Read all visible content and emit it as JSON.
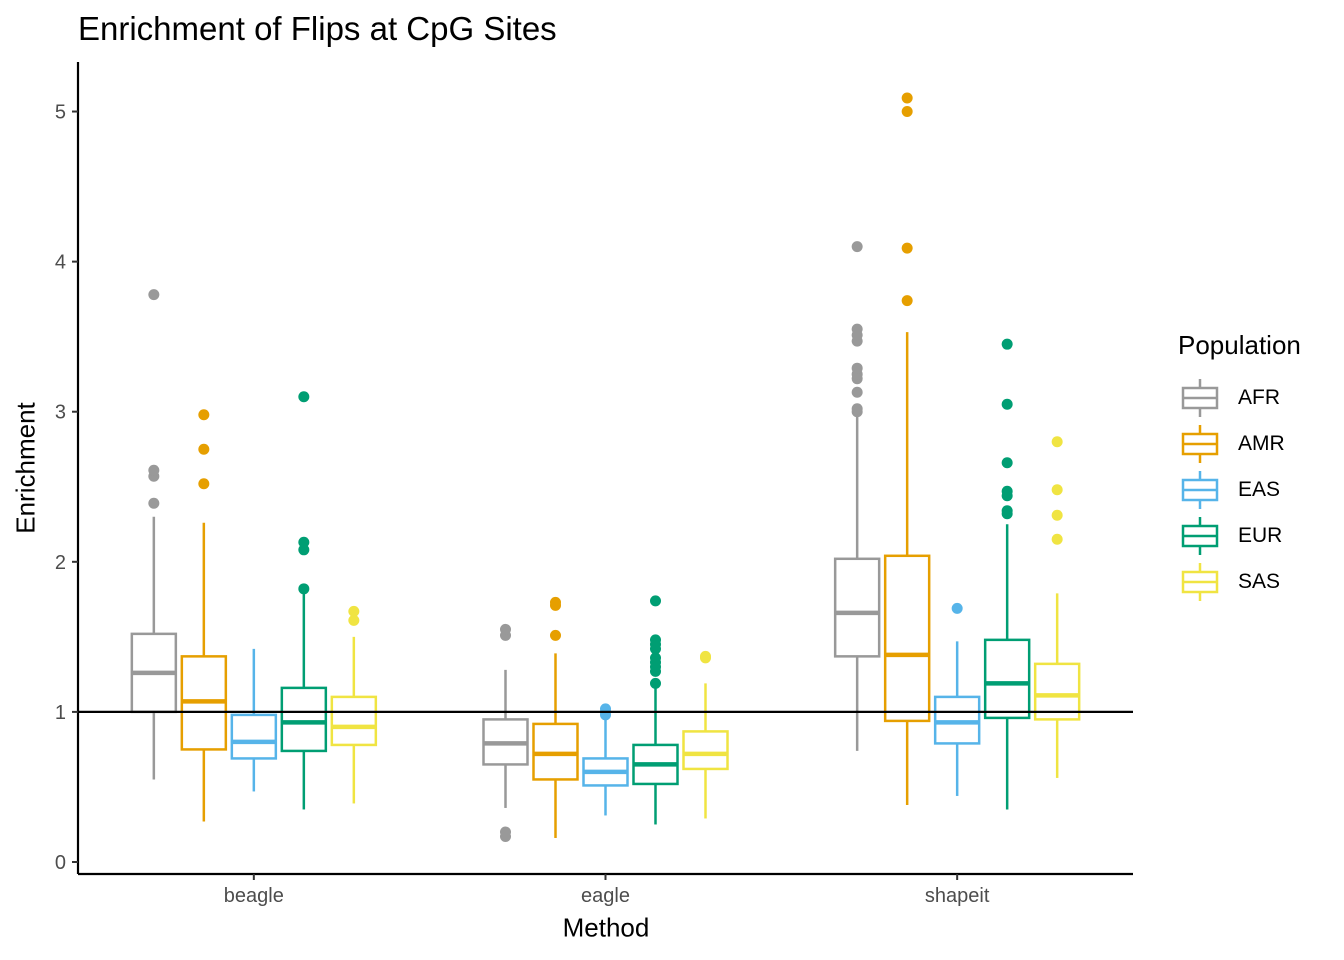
{
  "chart_data": {
    "type": "box",
    "title": "Enrichment of Flips at CpG Sites",
    "xlabel": "Method",
    "ylabel": "Enrichment",
    "categories": [
      "beagle",
      "eagle",
      "shapeit"
    ],
    "ylim": [
      -0.08,
      5.33
    ],
    "yticks": [
      0,
      1,
      2,
      3,
      4,
      5
    ],
    "reference_line": 1,
    "grid": false,
    "legend": {
      "title": "Population",
      "position": "right"
    },
    "series": [
      {
        "name": "AFR",
        "color": "#999999",
        "boxes": [
          {
            "min": 0.55,
            "q1": 1.0,
            "median": 1.26,
            "q3": 1.52,
            "max": 2.3,
            "outliers": [
              2.39,
              2.57,
              2.61,
              3.78
            ]
          },
          {
            "min": 0.36,
            "q1": 0.65,
            "median": 0.79,
            "q3": 0.95,
            "max": 1.28,
            "outliers": [
              0.17,
              0.2,
              1.51,
              1.55
            ]
          },
          {
            "min": 0.74,
            "q1": 1.37,
            "median": 1.66,
            "q3": 2.02,
            "max": 2.98,
            "outliers": [
              3.0,
              3.02,
              3.13,
              3.22,
              3.25,
              3.29,
              3.47,
              3.51,
              3.55,
              4.1
            ]
          }
        ]
      },
      {
        "name": "AMR",
        "color": "#E69F00",
        "boxes": [
          {
            "min": 0.27,
            "q1": 0.75,
            "median": 1.07,
            "q3": 1.37,
            "max": 2.26,
            "outliers": [
              2.52,
              2.75,
              2.98
            ]
          },
          {
            "min": 0.16,
            "q1": 0.55,
            "median": 0.72,
            "q3": 0.92,
            "max": 1.39,
            "outliers": [
              1.51,
              1.71,
              1.73
            ]
          },
          {
            "min": 0.38,
            "q1": 0.94,
            "median": 1.38,
            "q3": 2.04,
            "max": 3.53,
            "outliers": [
              3.74,
              4.09,
              5.0,
              5.09
            ]
          }
        ]
      },
      {
        "name": "EAS",
        "color": "#56B4E9",
        "boxes": [
          {
            "min": 0.47,
            "q1": 0.69,
            "median": 0.8,
            "q3": 0.98,
            "max": 1.42,
            "outliers": []
          },
          {
            "min": 0.31,
            "q1": 0.51,
            "median": 0.6,
            "q3": 0.69,
            "max": 0.97,
            "outliers": [
              0.98,
              1.0,
              1.02
            ]
          },
          {
            "min": 0.44,
            "q1": 0.79,
            "median": 0.93,
            "q3": 1.1,
            "max": 1.47,
            "outliers": [
              1.69
            ]
          }
        ]
      },
      {
        "name": "EUR",
        "color": "#009E73",
        "boxes": [
          {
            "min": 0.35,
            "q1": 0.74,
            "median": 0.93,
            "q3": 1.16,
            "max": 1.8,
            "outliers": [
              1.82,
              2.08,
              2.13,
              3.1
            ]
          },
          {
            "min": 0.25,
            "q1": 0.52,
            "median": 0.65,
            "q3": 0.78,
            "max": 1.16,
            "outliers": [
              1.19,
              1.27,
              1.3,
              1.33,
              1.36,
              1.42,
              1.45,
              1.48,
              1.74
            ]
          },
          {
            "min": 0.35,
            "q1": 0.96,
            "median": 1.19,
            "q3": 1.48,
            "max": 2.25,
            "outliers": [
              2.32,
              2.34,
              2.44,
              2.47,
              2.66,
              3.05,
              3.45
            ]
          }
        ]
      },
      {
        "name": "SAS",
        "color": "#F0E442",
        "boxes": [
          {
            "min": 0.39,
            "q1": 0.78,
            "median": 0.9,
            "q3": 1.1,
            "max": 1.5,
            "outliers": [
              1.61,
              1.67
            ]
          },
          {
            "min": 0.29,
            "q1": 0.62,
            "median": 0.72,
            "q3": 0.87,
            "max": 1.19,
            "outliers": [
              1.36,
              1.37
            ]
          },
          {
            "min": 0.56,
            "q1": 0.95,
            "median": 1.11,
            "q3": 1.32,
            "max": 1.79,
            "outliers": [
              2.15,
              2.31,
              2.48,
              2.8
            ]
          }
        ]
      }
    ]
  }
}
